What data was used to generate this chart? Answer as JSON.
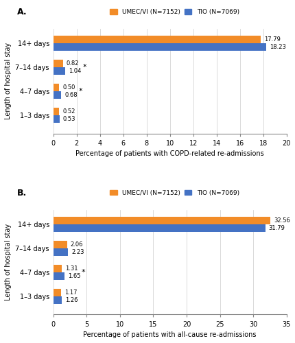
{
  "panel_A": {
    "panel_label": "A.",
    "categories": [
      "14+ days",
      "7–14 days",
      "4–7 days",
      "1–3 days"
    ],
    "umec_values": [
      17.79,
      0.82,
      0.5,
      0.52
    ],
    "tio_values": [
      18.23,
      1.04,
      0.68,
      0.53
    ],
    "umec_color": "#F28C28",
    "tio_color": "#4472C4",
    "xlabel": "Percentage of patients with COPD-related re-admissions",
    "ylabel": "Length of hospital stay",
    "xlim": [
      0,
      20
    ],
    "xticks": [
      0,
      2,
      4,
      6,
      8,
      10,
      12,
      14,
      16,
      18,
      20
    ],
    "significant": [
      false,
      true,
      true,
      false
    ],
    "legend_umec": "UMEC/VI (N=7152)",
    "legend_tio": "TIO (N=7069)"
  },
  "panel_B": {
    "panel_label": "B.",
    "categories": [
      "14+ days",
      "7–14 days",
      "4–7 days",
      "1–3 days"
    ],
    "umec_values": [
      32.56,
      2.06,
      1.31,
      1.17
    ],
    "tio_values": [
      31.79,
      2.23,
      1.65,
      1.26
    ],
    "umec_color": "#F28C28",
    "tio_color": "#4472C4",
    "xlabel": "Percentage of patients with all-cause re-admissions",
    "ylabel": "Length of hospital stay",
    "xlim": [
      0,
      35
    ],
    "xticks": [
      0,
      5,
      10,
      15,
      20,
      25,
      30,
      35
    ],
    "significant": [
      false,
      false,
      true,
      false
    ],
    "legend_umec": "UMEC/VI (N=7152)",
    "legend_tio": "TIO (N=7069)"
  }
}
